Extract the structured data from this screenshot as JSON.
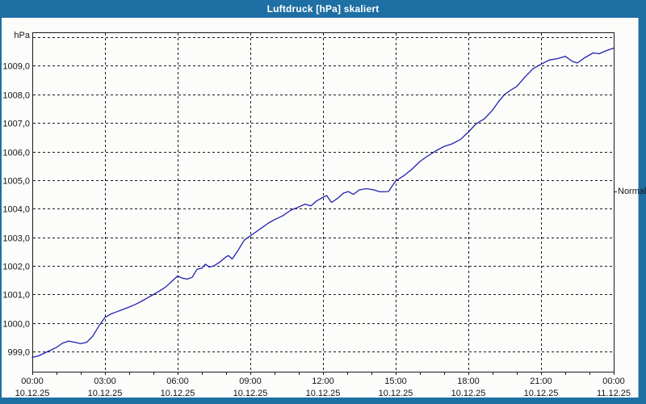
{
  "window": {
    "title": "Luftdruck [hPa] skaliert"
  },
  "colors": {
    "frame_blue": "#1e6fa4",
    "panel_bg": "#fcfcfa",
    "line_blue": "#2121b4",
    "grid_black": "#1a1a1a",
    "label_text": "#14141e"
  },
  "chart_data": {
    "type": "line",
    "title": "Luftdruck [hPa] skaliert",
    "unit_label": "hPa",
    "right_label": "Normal",
    "normal_value_hpa": 1004.6,
    "grid": "dashed",
    "legend_position": "right",
    "x_hours_range": [
      0,
      24
    ],
    "ylim": [
      998.3,
      1010.17
    ],
    "y_gridlines": [
      {
        "value": 999,
        "label": "999,0"
      },
      {
        "value": 1000,
        "label": "1000,0"
      },
      {
        "value": 1001,
        "label": "1001,0"
      },
      {
        "value": 1002,
        "label": "1002,0"
      },
      {
        "value": 1003,
        "label": "1003,0"
      },
      {
        "value": 1004,
        "label": "1004,0"
      },
      {
        "value": 1005,
        "label": "1005,0"
      },
      {
        "value": 1006,
        "label": "1006,0"
      },
      {
        "value": 1007,
        "label": "1007,0"
      },
      {
        "value": 1008,
        "label": "1008,0"
      },
      {
        "value": 1009,
        "label": "1009,0"
      },
      {
        "value": 1010,
        "label": ""
      }
    ],
    "x_gridline_hours": [
      3,
      6,
      9,
      12,
      15,
      18,
      21
    ],
    "x_minor_tick_every_hours": 1,
    "x_axis_labels": [
      {
        "hour": 0,
        "time": "00:00",
        "date": "10.12.25"
      },
      {
        "hour": 3,
        "time": "03:00",
        "date": "10.12.25"
      },
      {
        "hour": 6,
        "time": "06:00",
        "date": "10.12.25"
      },
      {
        "hour": 9,
        "time": "09:00",
        "date": "10.12.25"
      },
      {
        "hour": 12,
        "time": "12:00",
        "date": "10.12.25"
      },
      {
        "hour": 15,
        "time": "15:00",
        "date": "10.12.25"
      },
      {
        "hour": 18,
        "time": "18:00",
        "date": "10.12.25"
      },
      {
        "hour": 21,
        "time": "21:00",
        "date": "10.12.25"
      },
      {
        "hour": 24,
        "time": "00:00",
        "date": "11.12.25"
      }
    ],
    "series": [
      {
        "name": "Luftdruck [hPa]",
        "points": [
          [
            0.0,
            998.8
          ],
          [
            0.25,
            998.85
          ],
          [
            0.5,
            998.95
          ],
          [
            0.75,
            999.05
          ],
          [
            1.0,
            999.15
          ],
          [
            1.25,
            999.3
          ],
          [
            1.5,
            999.37
          ],
          [
            1.75,
            999.33
          ],
          [
            2.0,
            999.28
          ],
          [
            2.25,
            999.33
          ],
          [
            2.5,
            999.55
          ],
          [
            2.75,
            999.9
          ],
          [
            3.0,
            1000.2
          ],
          [
            3.25,
            1000.32
          ],
          [
            3.5,
            1000.4
          ],
          [
            3.75,
            1000.48
          ],
          [
            4.0,
            1000.56
          ],
          [
            4.25,
            1000.65
          ],
          [
            4.5,
            1000.76
          ],
          [
            4.75,
            1000.88
          ],
          [
            5.0,
            1001.0
          ],
          [
            5.25,
            1001.12
          ],
          [
            5.5,
            1001.26
          ],
          [
            5.75,
            1001.45
          ],
          [
            6.0,
            1001.65
          ],
          [
            6.2,
            1001.57
          ],
          [
            6.4,
            1001.54
          ],
          [
            6.6,
            1001.6
          ],
          [
            6.8,
            1001.88
          ],
          [
            7.0,
            1001.92
          ],
          [
            7.15,
            1002.06
          ],
          [
            7.3,
            1001.96
          ],
          [
            7.5,
            1002.0
          ],
          [
            7.75,
            1002.14
          ],
          [
            8.0,
            1002.32
          ],
          [
            8.1,
            1002.36
          ],
          [
            8.25,
            1002.24
          ],
          [
            8.5,
            1002.55
          ],
          [
            8.75,
            1002.9
          ],
          [
            9.0,
            1003.05
          ],
          [
            9.25,
            1003.2
          ],
          [
            9.5,
            1003.35
          ],
          [
            9.75,
            1003.5
          ],
          [
            10.0,
            1003.62
          ],
          [
            10.33,
            1003.75
          ],
          [
            10.67,
            1003.95
          ],
          [
            11.0,
            1004.06
          ],
          [
            11.25,
            1004.16
          ],
          [
            11.5,
            1004.1
          ],
          [
            11.75,
            1004.28
          ],
          [
            12.0,
            1004.4
          ],
          [
            12.15,
            1004.46
          ],
          [
            12.35,
            1004.22
          ],
          [
            12.6,
            1004.36
          ],
          [
            12.85,
            1004.55
          ],
          [
            13.05,
            1004.6
          ],
          [
            13.25,
            1004.5
          ],
          [
            13.5,
            1004.66
          ],
          [
            13.8,
            1004.7
          ],
          [
            14.1,
            1004.66
          ],
          [
            14.35,
            1004.59
          ],
          [
            14.7,
            1004.6
          ],
          [
            14.9,
            1004.85
          ],
          [
            15.0,
            1004.97
          ],
          [
            15.33,
            1005.15
          ],
          [
            15.67,
            1005.38
          ],
          [
            16.0,
            1005.65
          ],
          [
            16.33,
            1005.85
          ],
          [
            16.67,
            1006.03
          ],
          [
            17.0,
            1006.18
          ],
          [
            17.33,
            1006.27
          ],
          [
            17.67,
            1006.42
          ],
          [
            18.0,
            1006.68
          ],
          [
            18.33,
            1006.98
          ],
          [
            18.67,
            1007.15
          ],
          [
            19.0,
            1007.45
          ],
          [
            19.25,
            1007.75
          ],
          [
            19.5,
            1008.0
          ],
          [
            19.75,
            1008.15
          ],
          [
            20.0,
            1008.28
          ],
          [
            20.33,
            1008.6
          ],
          [
            20.67,
            1008.9
          ],
          [
            21.0,
            1009.05
          ],
          [
            21.33,
            1009.2
          ],
          [
            21.67,
            1009.25
          ],
          [
            22.0,
            1009.33
          ],
          [
            22.3,
            1009.15
          ],
          [
            22.5,
            1009.1
          ],
          [
            22.8,
            1009.28
          ],
          [
            23.15,
            1009.45
          ],
          [
            23.4,
            1009.42
          ],
          [
            23.7,
            1009.53
          ],
          [
            24.0,
            1009.62
          ]
        ]
      }
    ]
  }
}
